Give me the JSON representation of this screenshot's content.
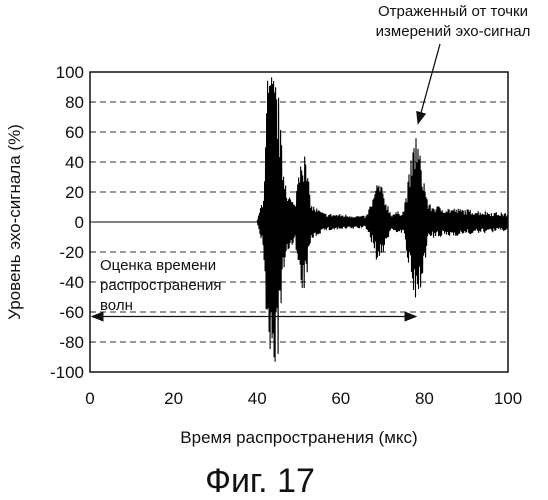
{
  "chart_data": {
    "type": "line",
    "title": "",
    "xlabel": "Время распространения (мкс)",
    "ylabel": "Уровень эхо-сигнала (%)",
    "xlim": [
      0,
      100
    ],
    "ylim": [
      -100,
      100
    ],
    "x_ticks": [
      0,
      20,
      40,
      60,
      80,
      100
    ],
    "y_ticks": [
      100,
      80,
      60,
      40,
      20,
      0,
      -20,
      -40,
      -60,
      -80,
      -100
    ],
    "grid": "horizontal dashed",
    "series": [
      {
        "name": "",
        "color": "#000000",
        "envelope": [
          {
            "x": 0,
            "amp": 0
          },
          {
            "x": 40,
            "amp": 0
          },
          {
            "x": 41.5,
            "amp": 20
          },
          {
            "x": 42.5,
            "amp": 100
          },
          {
            "x": 44,
            "amp": 100
          },
          {
            "x": 45,
            "amp": 90
          },
          {
            "x": 46,
            "amp": 45
          },
          {
            "x": 47.5,
            "amp": 20
          },
          {
            "x": 49,
            "amp": 12
          },
          {
            "x": 50.5,
            "amp": 55
          },
          {
            "x": 51.5,
            "amp": 45
          },
          {
            "x": 53,
            "amp": 12
          },
          {
            "x": 56,
            "amp": 6
          },
          {
            "x": 62,
            "amp": 5
          },
          {
            "x": 66,
            "amp": 4
          },
          {
            "x": 67.5,
            "amp": 15
          },
          {
            "x": 69,
            "amp": 30
          },
          {
            "x": 70.5,
            "amp": 18
          },
          {
            "x": 72,
            "amp": 6
          },
          {
            "x": 75,
            "amp": 8
          },
          {
            "x": 77,
            "amp": 45
          },
          {
            "x": 78,
            "amp": 63
          },
          {
            "x": 79,
            "amp": 45
          },
          {
            "x": 81,
            "amp": 12
          },
          {
            "x": 85,
            "amp": 10
          },
          {
            "x": 100,
            "amp": 6
          }
        ]
      }
    ],
    "annotations": [
      {
        "text_lines": [
          "Отраженный от точки",
          "измерений эхо-сигнал"
        ],
        "arrow_to": {
          "x": 78,
          "y": 63
        }
      },
      {
        "text_lines": [
          "Оценка времени",
          "распространения",
          "волн"
        ],
        "double_arrow": {
          "x_from": 0,
          "x_to": 78,
          "y": -63
        }
      }
    ]
  },
  "caption": "Фиг. 17"
}
